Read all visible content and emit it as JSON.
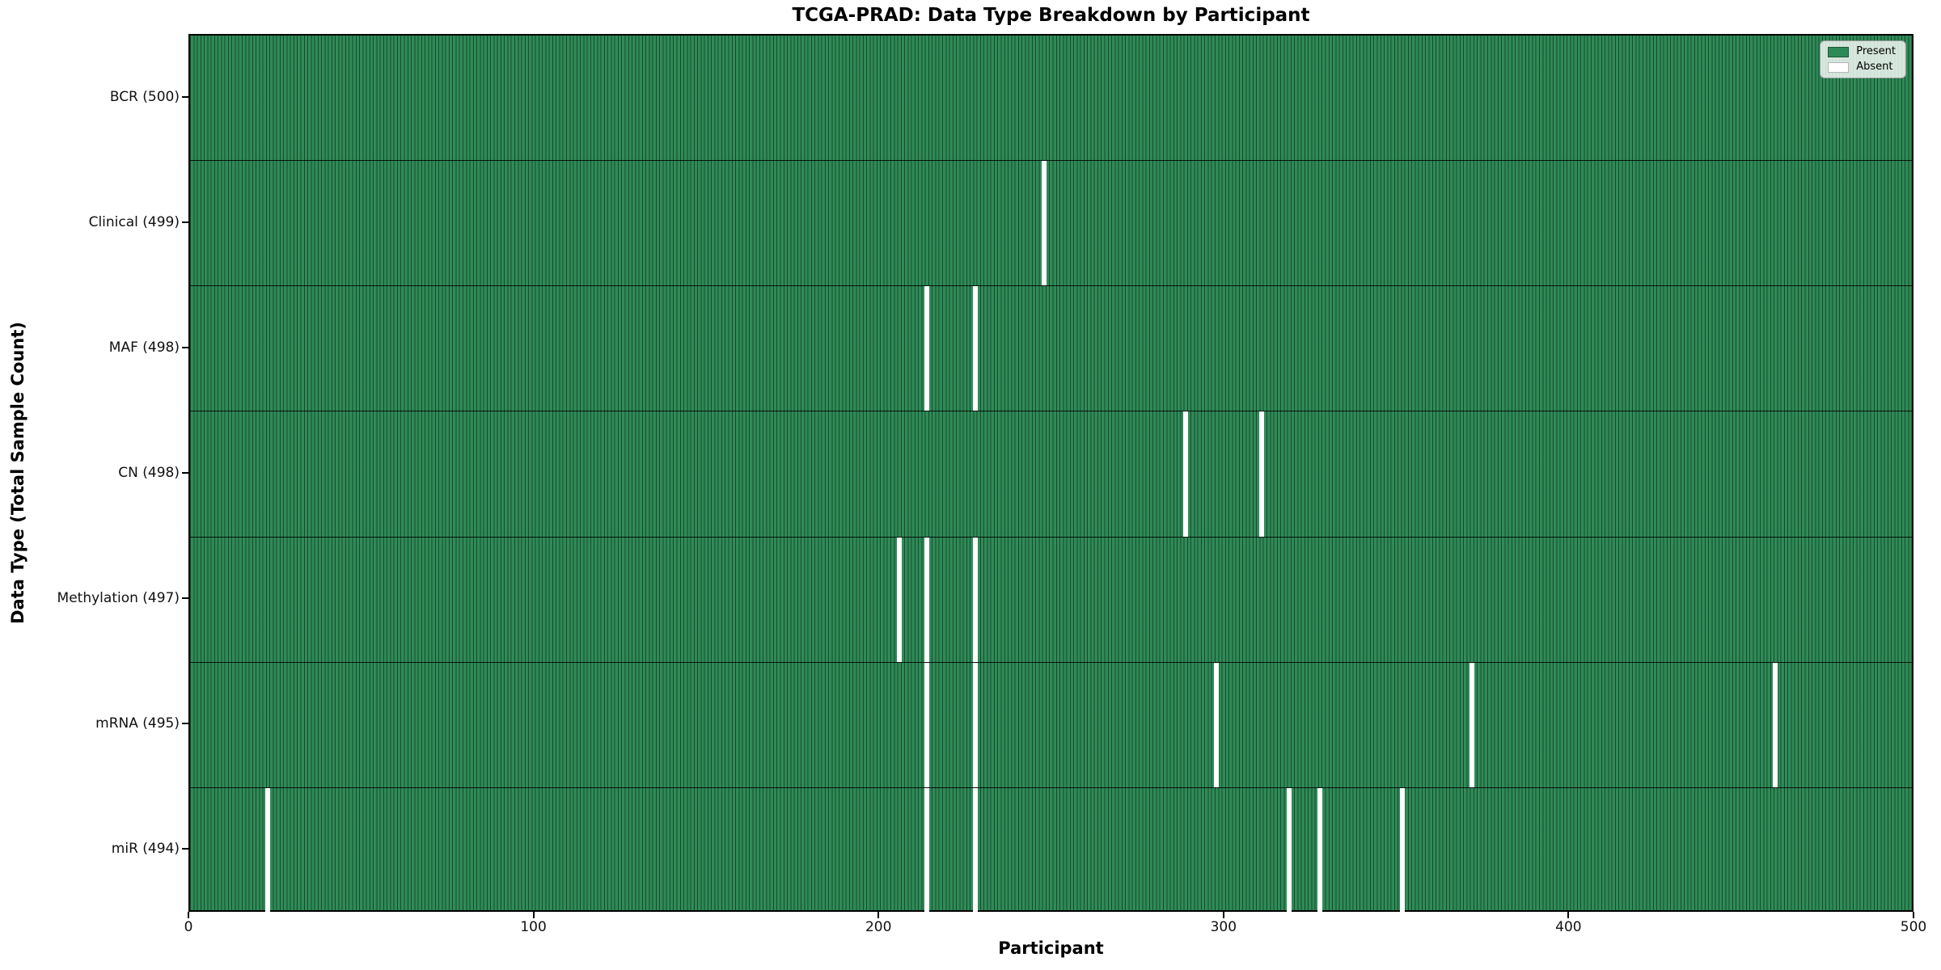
{
  "chart_data": {
    "type": "heatmap",
    "title": "TCGA-PRAD: Data Type Breakdown by Participant",
    "xlabel": "Participant",
    "ylabel": "Data Type (Total Sample Count)",
    "legend": [
      "Present",
      "Absent"
    ],
    "legend_position": "upper right",
    "x_range": [
      0,
      500
    ],
    "x_ticks": [
      0,
      100,
      200,
      300,
      400,
      500
    ],
    "n_participants": 500,
    "grid": false,
    "colors": {
      "present": "#2e8b57",
      "absent": "#ffffff"
    },
    "rows": [
      {
        "label": "BCR (500)",
        "data_type": "BCR",
        "total": 500,
        "absent_participants": []
      },
      {
        "label": "Clinical (499)",
        "data_type": "Clinical",
        "total": 499,
        "absent_participants": [
          247
        ]
      },
      {
        "label": "MAF (498)",
        "data_type": "MAF",
        "total": 498,
        "absent_participants": [
          213,
          227
        ]
      },
      {
        "label": "CN (498)",
        "data_type": "CN",
        "total": 498,
        "absent_participants": [
          288,
          310
        ]
      },
      {
        "label": "Methylation (497)",
        "data_type": "Methylation",
        "total": 497,
        "absent_participants": [
          205,
          213,
          227
        ]
      },
      {
        "label": "mRNA (495)",
        "data_type": "mRNA",
        "total": 495,
        "absent_participants": [
          213,
          227,
          297,
          371,
          459
        ]
      },
      {
        "label": "miR (494)",
        "data_type": "miR",
        "total": 494,
        "absent_participants": [
          22,
          213,
          227,
          318,
          327,
          351
        ]
      }
    ]
  }
}
